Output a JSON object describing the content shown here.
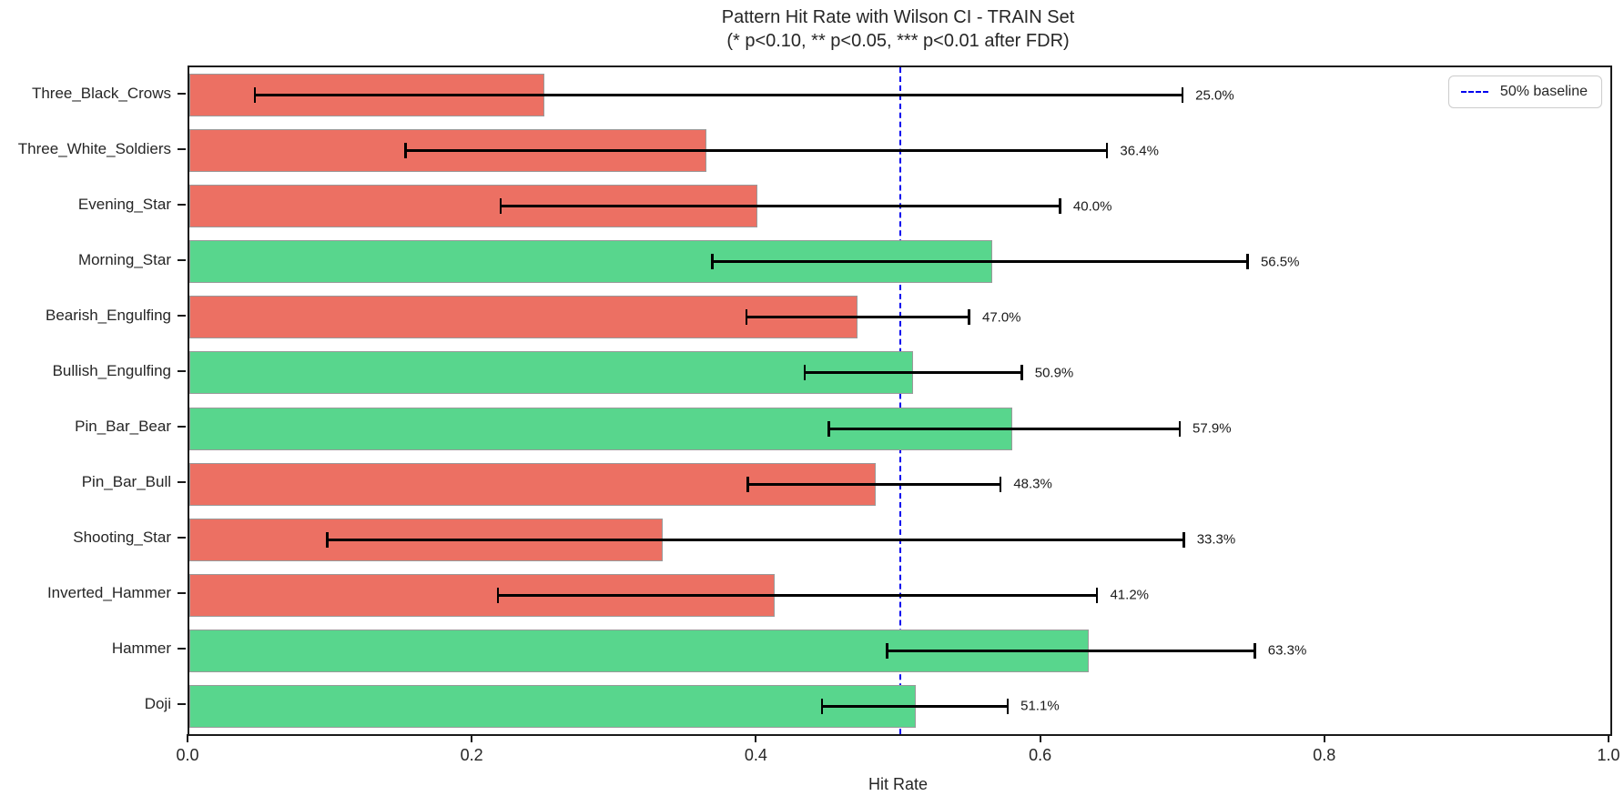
{
  "title": "Pattern Hit Rate with Wilson CI - TRAIN Set",
  "subtitle": "(* p<0.10, ** p<0.05, *** p<0.01 after FDR)",
  "legend": {
    "baseline_label": "50% baseline"
  },
  "chart_data": {
    "type": "bar",
    "orientation": "horizontal",
    "title": "Pattern Hit Rate with Wilson CI - TRAIN Set",
    "subtitle": "(* p<0.10, ** p<0.05, *** p<0.01 after FDR)",
    "xlabel": "Hit Rate",
    "ylabel": "",
    "xlim": [
      0.0,
      1.0
    ],
    "xticks": [
      0.0,
      0.2,
      0.4,
      0.6,
      0.8,
      1.0
    ],
    "xtick_labels": [
      "0.0",
      "0.2",
      "0.4",
      "0.6",
      "0.8",
      "1.0"
    ],
    "grid": false,
    "legend_position": "upper right",
    "baseline": {
      "value": 0.5,
      "label": "50% baseline",
      "style": "dashed",
      "color": "#0000ee"
    },
    "colors": {
      "above_baseline": "#58d68d",
      "below_baseline": "#ec7063",
      "bar_edge": "#9a9a9a",
      "error_bar": "#000000",
      "baseline_line": "#0000ee"
    },
    "bars": [
      {
        "label": "Three_Black_Crows",
        "value": 0.25,
        "value_label": "25.0%",
        "ci_low": 0.046,
        "ci_high": 0.699
      },
      {
        "label": "Three_White_Soldiers",
        "value": 0.364,
        "value_label": "36.4%",
        "ci_low": 0.152,
        "ci_high": 0.646
      },
      {
        "label": "Evening_Star",
        "value": 0.4,
        "value_label": "40.0%",
        "ci_low": 0.219,
        "ci_high": 0.613
      },
      {
        "label": "Morning_Star",
        "value": 0.565,
        "value_label": "56.5%",
        "ci_low": 0.368,
        "ci_high": 0.745
      },
      {
        "label": "Bearish_Engulfing",
        "value": 0.47,
        "value_label": "47.0%",
        "ci_low": 0.392,
        "ci_high": 0.549
      },
      {
        "label": "Bullish_Engulfing",
        "value": 0.509,
        "value_label": "50.9%",
        "ci_low": 0.433,
        "ci_high": 0.586
      },
      {
        "label": "Pin_Bar_Bear",
        "value": 0.579,
        "value_label": "57.9%",
        "ci_low": 0.45,
        "ci_high": 0.697
      },
      {
        "label": "Pin_Bar_Bull",
        "value": 0.483,
        "value_label": "48.3%",
        "ci_low": 0.393,
        "ci_high": 0.571
      },
      {
        "label": "Shooting_Star",
        "value": 0.333,
        "value_label": "33.3%",
        "ci_low": 0.097,
        "ci_high": 0.7
      },
      {
        "label": "Inverted_Hammer",
        "value": 0.412,
        "value_label": "41.2%",
        "ci_low": 0.217,
        "ci_high": 0.639
      },
      {
        "label": "Hammer",
        "value": 0.633,
        "value_label": "63.3%",
        "ci_low": 0.491,
        "ci_high": 0.75
      },
      {
        "label": "Doji",
        "value": 0.511,
        "value_label": "51.1%",
        "ci_low": 0.445,
        "ci_high": 0.576
      }
    ]
  }
}
